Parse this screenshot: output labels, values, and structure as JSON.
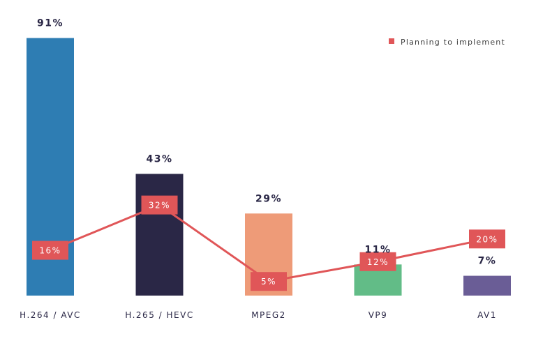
{
  "chart_data": {
    "type": "bar",
    "categories": [
      "H.264 / AVC",
      "H.265 / HEVC",
      "MPEG2",
      "VP9",
      "AV1"
    ],
    "series": [
      {
        "values": [
          91,
          43,
          29,
          11,
          7
        ],
        "value_labels": [
          "91%",
          "43%",
          "29%",
          "11%",
          "7%"
        ],
        "colors": [
          "#2e7db3",
          "#2a2746",
          "#ee9b78",
          "#62bc87",
          "#6a5d96"
        ]
      },
      {
        "name": "Planning to implement",
        "type": "line",
        "values": [
          16,
          32,
          5,
          12,
          20
        ],
        "value_labels": [
          "16%",
          "32%",
          "5%",
          "12%",
          "20%"
        ],
        "color": "#e05658"
      }
    ],
    "ylim": [
      0,
      100
    ],
    "legend": {
      "position": "top-right",
      "label": "Planning to implement"
    },
    "grid": false
  }
}
